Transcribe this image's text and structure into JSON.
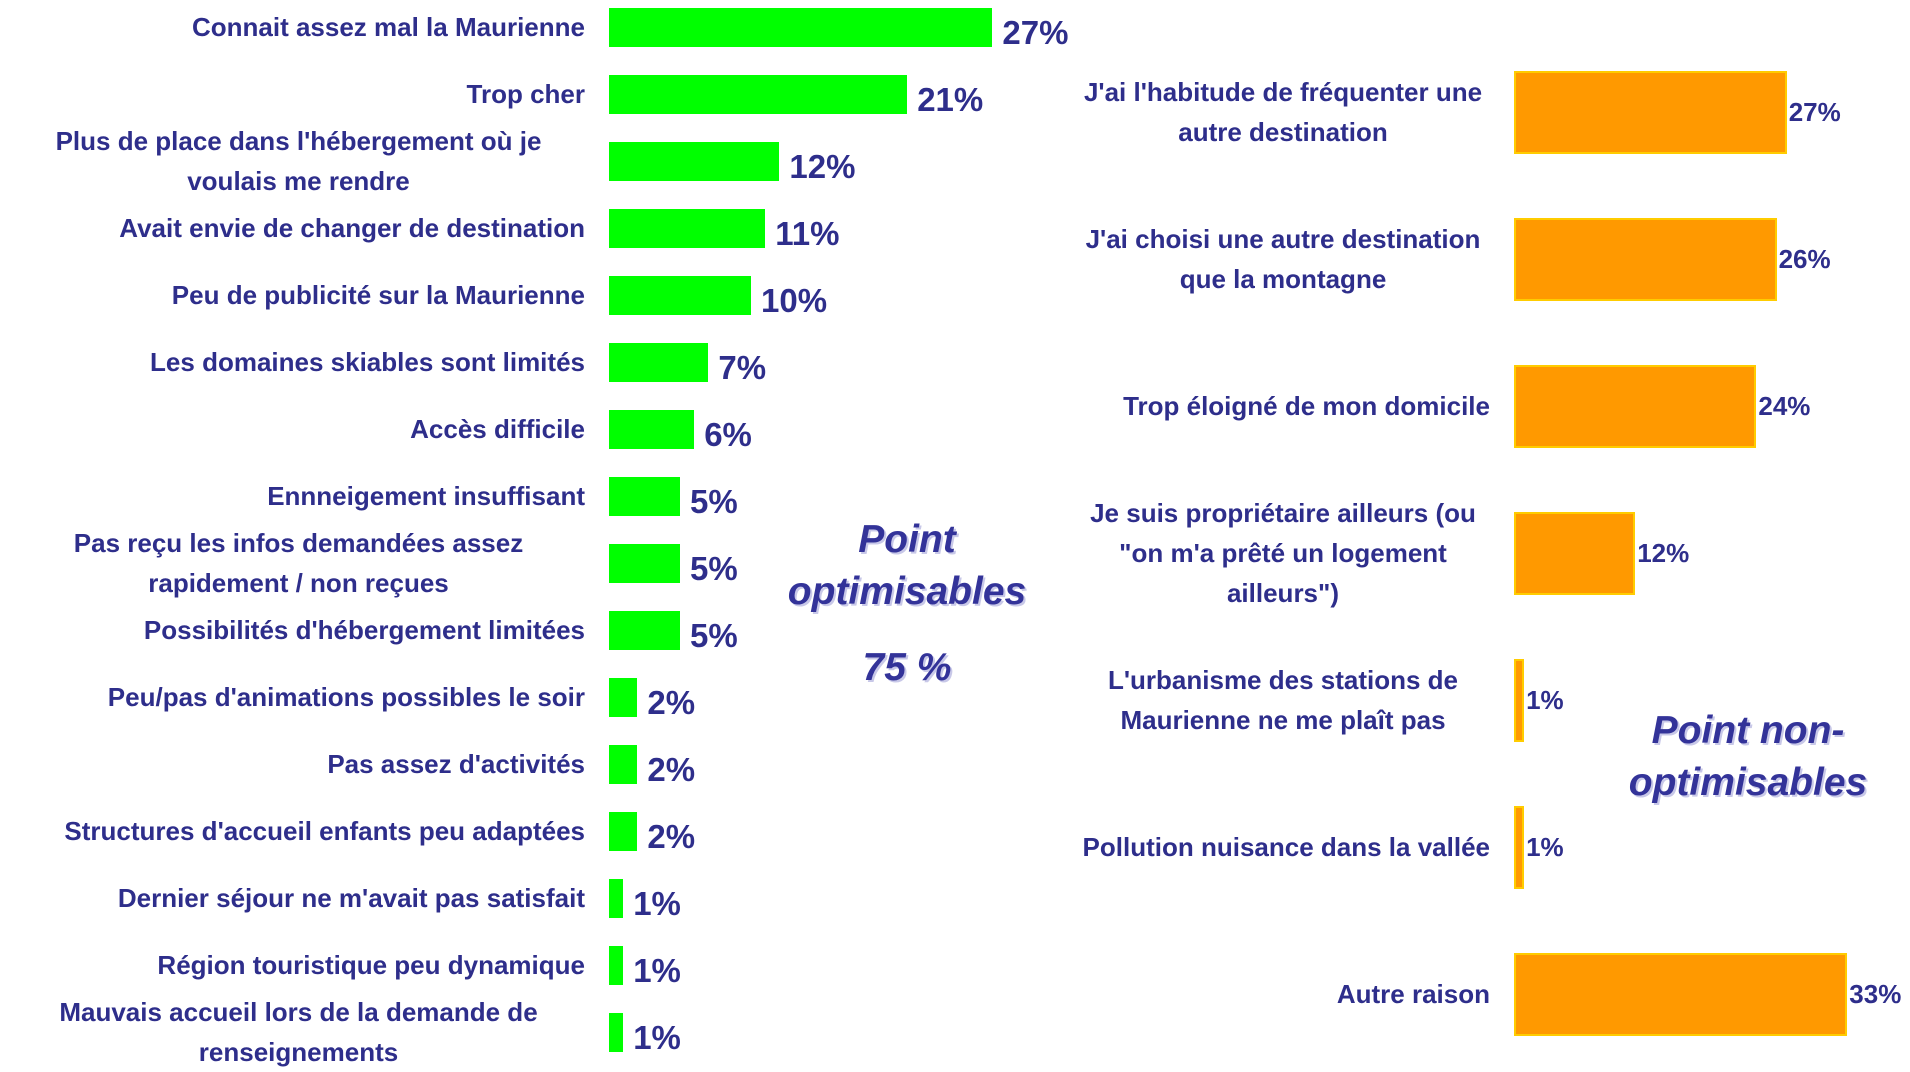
{
  "chart_data": [
    {
      "type": "bar",
      "orientation": "horizontal",
      "color": "#00ff00",
      "categories": [
        "Connait assez mal la Maurienne",
        "Trop cher",
        "Plus de place dans l'hébergement où je voulais me rendre",
        "Avait envie de changer de destination",
        "Peu de publicité sur la Maurienne",
        "Les domaines skiables sont limités",
        "Accès difficile",
        "Ennneigement insuffisant",
        "Pas reçu les infos demandées assez rapidement / non reçues",
        "Possibilités d'hébergement limitées",
        "Peu/pas d'animations possibles le soir",
        "Pas assez d'activités",
        "Structures d'accueil enfants peu adaptées",
        "Dernier séjour ne m'avait pas satisfait",
        "Région touristique peu dynamique",
        "Mauvais accueil lors de la demande de renseignements"
      ],
      "values": [
        27,
        21,
        12,
        11,
        10,
        7,
        6,
        5,
        5,
        5,
        2,
        2,
        2,
        1,
        1,
        1
      ],
      "value_labels": [
        "27%",
        "21%",
        "12%",
        "11%",
        "10%",
        "7%",
        "6%",
        "5%",
        "5%",
        "5%",
        "2%",
        "2%",
        "2%",
        "1%",
        "1%",
        "1%"
      ],
      "annotations": [
        "Point optimisables",
        "75 %"
      ]
    },
    {
      "type": "bar",
      "orientation": "horizontal",
      "color": "#ff9900",
      "categories": [
        "J'ai l'habitude de fréquenter une autre destination",
        "J'ai choisi une autre destination que la montagne",
        "Trop éloigné de mon domicile",
        "Je suis propriétaire ailleurs (ou \"on m'a prêté un logement ailleurs\")",
        "L'urbanisme des stations de Maurienne ne me plaît pas",
        "Pollution nuisance dans la vallée",
        "Autre raison"
      ],
      "values": [
        27,
        26,
        24,
        12,
        1,
        1,
        33
      ],
      "value_labels": [
        "27%",
        "26%",
        "24%",
        "12%",
        "1%",
        "1%",
        "33%"
      ],
      "annotations": [
        "Point non-optimisables"
      ]
    }
  ]
}
